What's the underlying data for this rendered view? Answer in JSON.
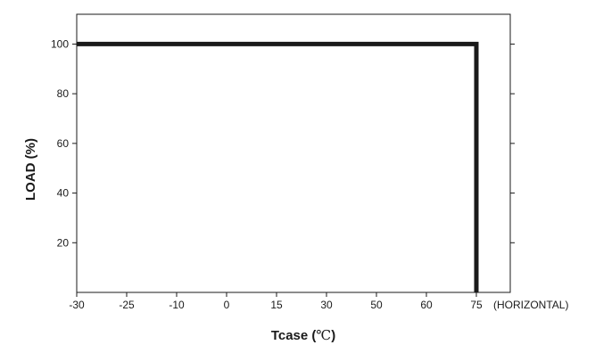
{
  "chart_data": {
    "type": "line",
    "xlabel": "Tcase",
    "xlabel_unit": "℃",
    "ylabel": "LOAD (%)",
    "x_ticks": [
      "-30",
      "-25",
      "-10",
      "0",
      "15",
      "30",
      "50",
      "60",
      "75"
    ],
    "x_note": "(HORIZONTAL)",
    "y_ticks": [
      20,
      40,
      60,
      80,
      100
    ],
    "ylim": [
      0,
      112
    ],
    "grid": false,
    "series": [
      {
        "points": [
          {
            "x": "-30",
            "y": 100
          },
          {
            "x": "75",
            "y": 100
          },
          {
            "x": "75",
            "y": 0
          }
        ]
      }
    ],
    "colors": {
      "line": "#1a1a1a",
      "frame": "#1a1a1a"
    }
  }
}
